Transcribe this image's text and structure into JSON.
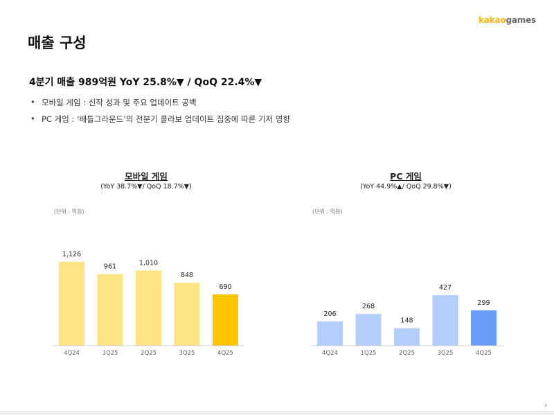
{
  "logo": {
    "k": "kakao",
    "g": "games"
  },
  "page_title": "매출 구성",
  "headline": "4분기 매출 989억원 YoY 25.8%▼ / QoQ 22.4%▼",
  "bullets": [
    "모바일 게임 : 신작 성과 및 주요 업데이트 공백",
    "PC 게임 : ‘배틀그라운드’의 전분기 콜라보 업데이트 집중에 따른 기저 영향"
  ],
  "chart_data": [
    {
      "type": "bar",
      "title": "모바일 게임",
      "subtitle": "(YoY 38.7%▼/ QoQ 18.7%▼)",
      "unit_label": "(단위 : 억원)",
      "categories": [
        "4Q24",
        "1Q25",
        "2Q25",
        "3Q25",
        "4Q25"
      ],
      "values": [
        1126,
        961,
        1010,
        848,
        690
      ],
      "value_labels": [
        "1,126",
        "961",
        "1,010",
        "848",
        "690"
      ],
      "colors": [
        "#fde383",
        "#fde383",
        "#fde383",
        "#fde383",
        "#ffc600"
      ],
      "ylim": [
        0,
        1126
      ]
    },
    {
      "type": "bar",
      "title": "PC 게임",
      "subtitle": "(YoY 44.9%▲/ QoQ 29.8%▼)",
      "unit_label": "(단위 : 억원)",
      "categories": [
        "4Q24",
        "1Q25",
        "2Q25",
        "3Q25",
        "4Q25"
      ],
      "values": [
        206,
        268,
        148,
        427,
        299
      ],
      "value_labels": [
        "206",
        "268",
        "148",
        "427",
        "299"
      ],
      "colors": [
        "#b3cdfc",
        "#b3cdfc",
        "#b3cdfc",
        "#b3cdfc",
        "#6a9dfb"
      ],
      "ylim": [
        0,
        427
      ]
    }
  ],
  "page_number": "4"
}
